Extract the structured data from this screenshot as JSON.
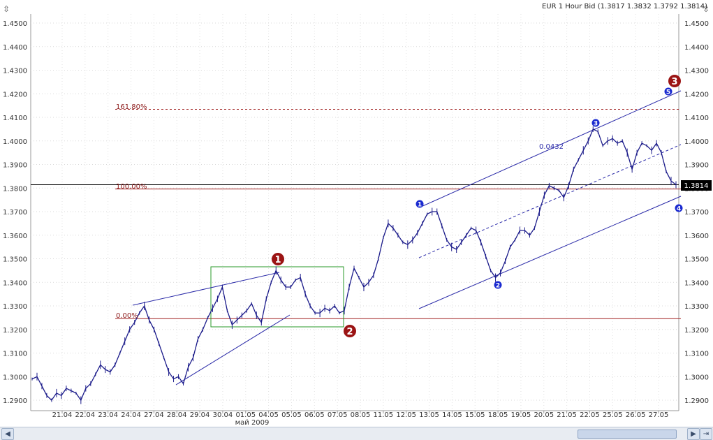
{
  "chart_title": "EUR 1 Hour Bid (1.3817 1.3832 1.3792 1.3814)",
  "current_price_label": "1.3814",
  "month_label": "май 2009",
  "icons": {
    "left_corner": "zoom-axis-icon",
    "right_corner": "zoom-axis-icon",
    "scroll_left": "arrow-left-icon",
    "scroll_right": "arrow-right-icon",
    "scroll_end": "scroll-to-end-icon"
  },
  "annotations": {
    "fib_161": "161.80%",
    "fib_100": "100.00%",
    "fib_0": "0.00%",
    "channel_width": "0.0432"
  },
  "chart_data": {
    "type": "line",
    "title": "EUR 1 Hour Bid (1.3817 1.3832 1.3792 1.3814)",
    "ylim": [
      1.285,
      1.455
    ],
    "yticks": [
      "1.2900",
      "1.3000",
      "1.3100",
      "1.3200",
      "1.3300",
      "1.3400",
      "1.3500",
      "1.3600",
      "1.3700",
      "1.3800",
      "1.3900",
      "1.4000",
      "1.4100",
      "1.4200",
      "1.4300",
      "1.4400",
      "1.4500"
    ],
    "xticks": [
      "21.04",
      "22.04",
      "23.04",
      "24.04",
      "27.04",
      "28.04",
      "29.04",
      "30.04",
      "01.05",
      "04.05",
      "05.05",
      "06.05",
      "07.05",
      "08.05",
      "11.05",
      "12.05",
      "13.05",
      "14.05",
      "15.05",
      "18.05",
      "19.05",
      "20.05",
      "21.05",
      "22.05",
      "25.05",
      "26.05",
      "27.05"
    ],
    "grid": true,
    "series": [
      {
        "values": [
          1.299,
          1.3,
          1.296,
          1.292,
          1.29,
          1.293,
          1.292,
          1.295,
          1.294,
          1.293,
          1.29,
          1.295,
          1.297,
          1.301,
          1.305,
          1.303,
          1.302,
          1.305,
          1.31,
          1.315,
          1.32,
          1.323,
          1.327,
          1.33,
          1.324,
          1.32,
          1.314,
          1.308,
          1.302,
          1.299,
          1.3,
          1.297,
          1.304,
          1.308,
          1.316,
          1.32,
          1.325,
          1.329,
          1.333,
          1.338,
          1.328,
          1.322,
          1.324,
          1.326,
          1.328,
          1.331,
          1.326,
          1.323,
          1.333,
          1.34,
          1.345,
          1.341,
          1.338,
          1.338,
          1.341,
          1.342,
          1.335,
          1.33,
          1.327,
          1.327,
          1.329,
          1.328,
          1.33,
          1.327,
          1.328,
          1.338,
          1.346,
          1.342,
          1.338,
          1.34,
          1.343,
          1.35,
          1.359,
          1.365,
          1.363,
          1.36,
          1.357,
          1.356,
          1.358,
          1.361,
          1.365,
          1.369,
          1.37,
          1.37,
          1.364,
          1.358,
          1.355,
          1.354,
          1.357,
          1.36,
          1.363,
          1.362,
          1.357,
          1.351,
          1.345,
          1.342,
          1.344,
          1.349,
          1.355,
          1.358,
          1.362,
          1.362,
          1.36,
          1.363,
          1.37,
          1.377,
          1.381,
          1.38,
          1.379,
          1.376,
          1.381,
          1.388,
          1.392,
          1.396,
          1.4,
          1.405,
          1.404,
          1.398,
          1.4,
          1.401,
          1.399,
          1.4,
          1.395,
          1.388,
          1.395,
          1.399,
          1.398,
          1.396,
          1.399,
          1.395,
          1.387,
          1.383,
          1.3814
        ]
      }
    ],
    "levels": [
      {
        "label": "161.80%",
        "value": 1.4134
      },
      {
        "label": "100.00%",
        "value": 1.3796
      },
      {
        "label": "0.00%",
        "value": 1.3246
      },
      {
        "label": "current",
        "value": 1.3814
      }
    ],
    "wave_labels_major": [
      "1",
      "2",
      "3"
    ],
    "wave_labels_minor": [
      "1",
      "2",
      "3",
      "4",
      "5"
    ]
  }
}
